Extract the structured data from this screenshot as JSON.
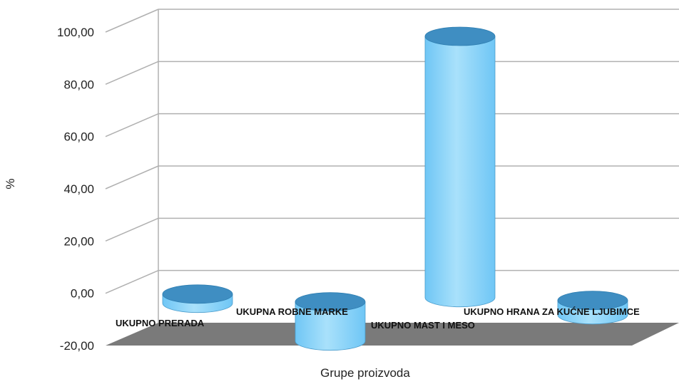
{
  "chart_data": {
    "type": "bar",
    "style": "3d-cylinder",
    "categories": [
      "UKUPNO PRERADA",
      "UKUPNA ROBNE MARKE",
      "UKUPNO MAST I MESO",
      "UKUPNO HRANA ZA KUĆNE LJUBIMCE"
    ],
    "series": [
      {
        "values": [
          3.5,
          -15.0,
          100.0,
          -5.5
        ]
      }
    ],
    "xlabel": "Grupe proizvoda",
    "ylabel": "%",
    "ylim": [
      -20,
      100
    ],
    "yticks": [
      "-20,00",
      "0,00",
      "20,00",
      "40,00",
      "60,00",
      "80,00",
      "100,00"
    ],
    "grid": true,
    "legend": "none",
    "colors": {
      "bar": "#6fc6f5",
      "bar_light": "#a9e1fb",
      "bar_top": "#3f8ec2",
      "floor": "#7a7a7a",
      "grid": "#b0b0b0"
    }
  }
}
